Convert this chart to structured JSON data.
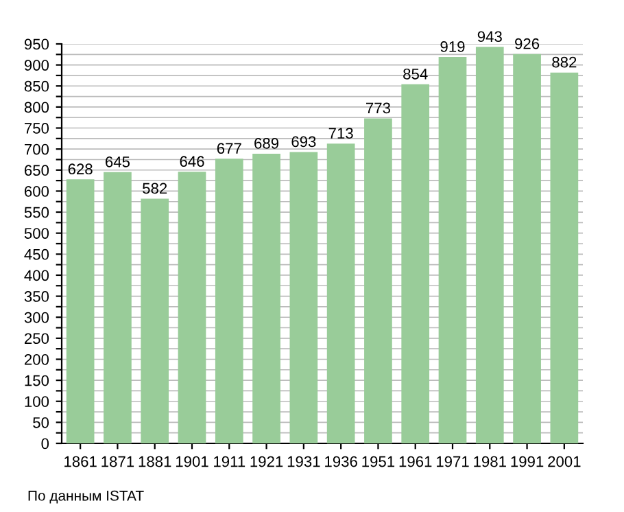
{
  "chart_data": {
    "type": "bar",
    "categories": [
      "1861",
      "1871",
      "1881",
      "1901",
      "1911",
      "1921",
      "1931",
      "1936",
      "1951",
      "1961",
      "1971",
      "1981",
      "1991",
      "2001"
    ],
    "values": [
      628,
      645,
      582,
      646,
      677,
      689,
      693,
      713,
      773,
      854,
      919,
      943,
      926,
      882
    ],
    "color": "#99cc99",
    "data_labels": true,
    "ylim": [
      0,
      950
    ],
    "yticks": [
      0,
      {
        "value": 25,
        "label": null
      },
      50,
      {
        "value": 75,
        "label": null
      },
      100,
      {
        "value": 125,
        "label": null
      },
      150,
      {
        "value": 175,
        "label": null
      },
      200,
      {
        "value": 225,
        "label": null
      },
      250,
      {
        "value": 275,
        "label": null
      },
      300,
      {
        "value": 325,
        "label": null
      },
      350,
      {
        "value": 375,
        "label": null
      },
      400,
      {
        "value": 425,
        "label": null
      },
      450,
      {
        "value": 475,
        "label": null
      },
      500,
      {
        "value": 525,
        "label": null
      },
      550,
      {
        "value": 575,
        "label": null
      },
      600,
      {
        "value": 625,
        "label": null
      },
      650,
      {
        "value": 675,
        "label": null
      },
      700,
      {
        "value": 725,
        "label": null
      },
      750,
      {
        "value": 775,
        "label": null
      },
      800,
      {
        "value": 825,
        "label": null
      },
      850,
      {
        "value": 875,
        "label": null
      },
      900,
      {
        "value": 925,
        "label": null
      },
      950
    ],
    "grid": "y",
    "annotations": [
      "По данным ISTAT"
    ]
  }
}
